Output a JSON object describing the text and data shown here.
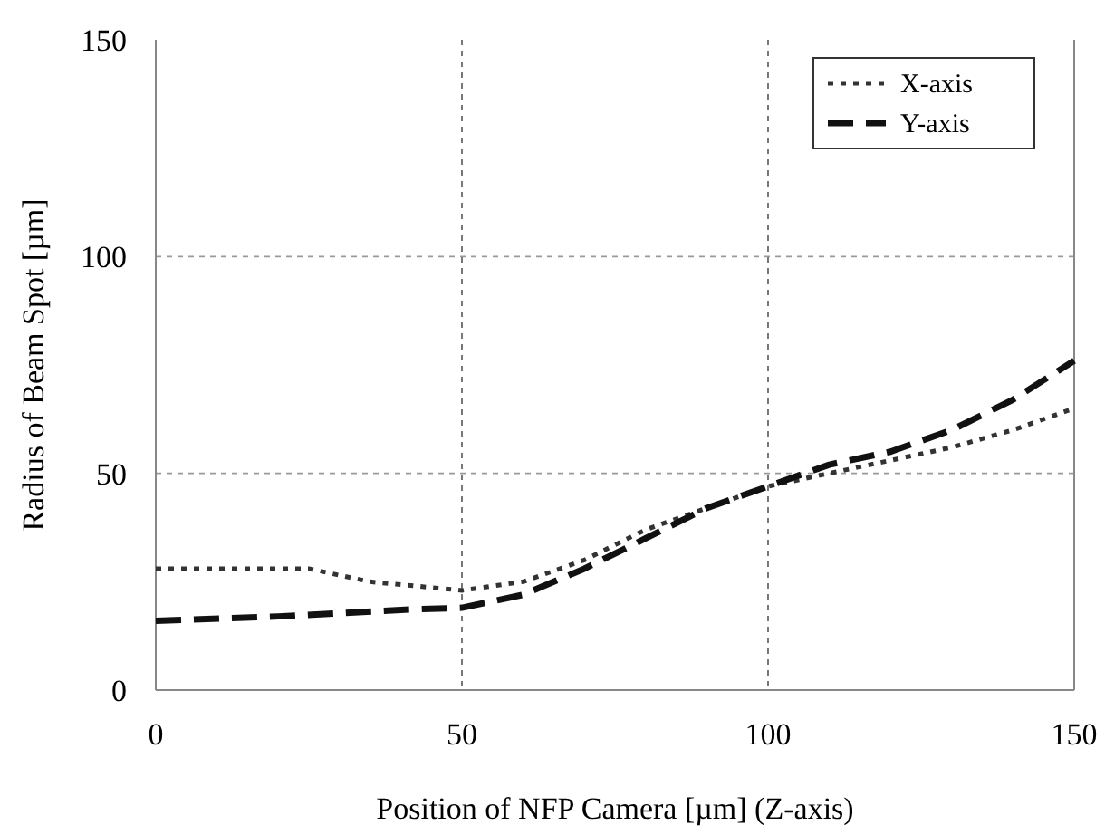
{
  "chart_data": {
    "type": "line",
    "xlabel": "Position of NFP Camera [µm] (Z-axis)",
    "ylabel": "Radius of Beam Spot [µm]",
    "xlim": [
      0,
      150
    ],
    "xticks": [
      0,
      50,
      100,
      150
    ],
    "ylim": [
      0,
      150
    ],
    "yticks": [
      0,
      50,
      100,
      150
    ],
    "grid": true,
    "legend": "top right",
    "series": [
      {
        "name": "X-axis",
        "color": "#333333",
        "line_style": "dotted",
        "x": [
          0,
          10,
          25,
          35,
          50,
          60,
          70,
          80,
          90,
          100,
          110,
          120,
          130,
          140,
          150
        ],
        "values": [
          28,
          28,
          28,
          25,
          23,
          25,
          30,
          37,
          42,
          47,
          50,
          53,
          56,
          60,
          65
        ]
      },
      {
        "name": "Y-axis",
        "color": "#111111",
        "line_style": "dashed",
        "x": [
          0,
          20,
          40,
          50,
          60,
          70,
          80,
          90,
          100,
          110,
          120,
          130,
          140,
          150
        ],
        "values": [
          16,
          17,
          18.5,
          19,
          22,
          28,
          35,
          42,
          47,
          52,
          55,
          60,
          67,
          76
        ]
      }
    ]
  }
}
